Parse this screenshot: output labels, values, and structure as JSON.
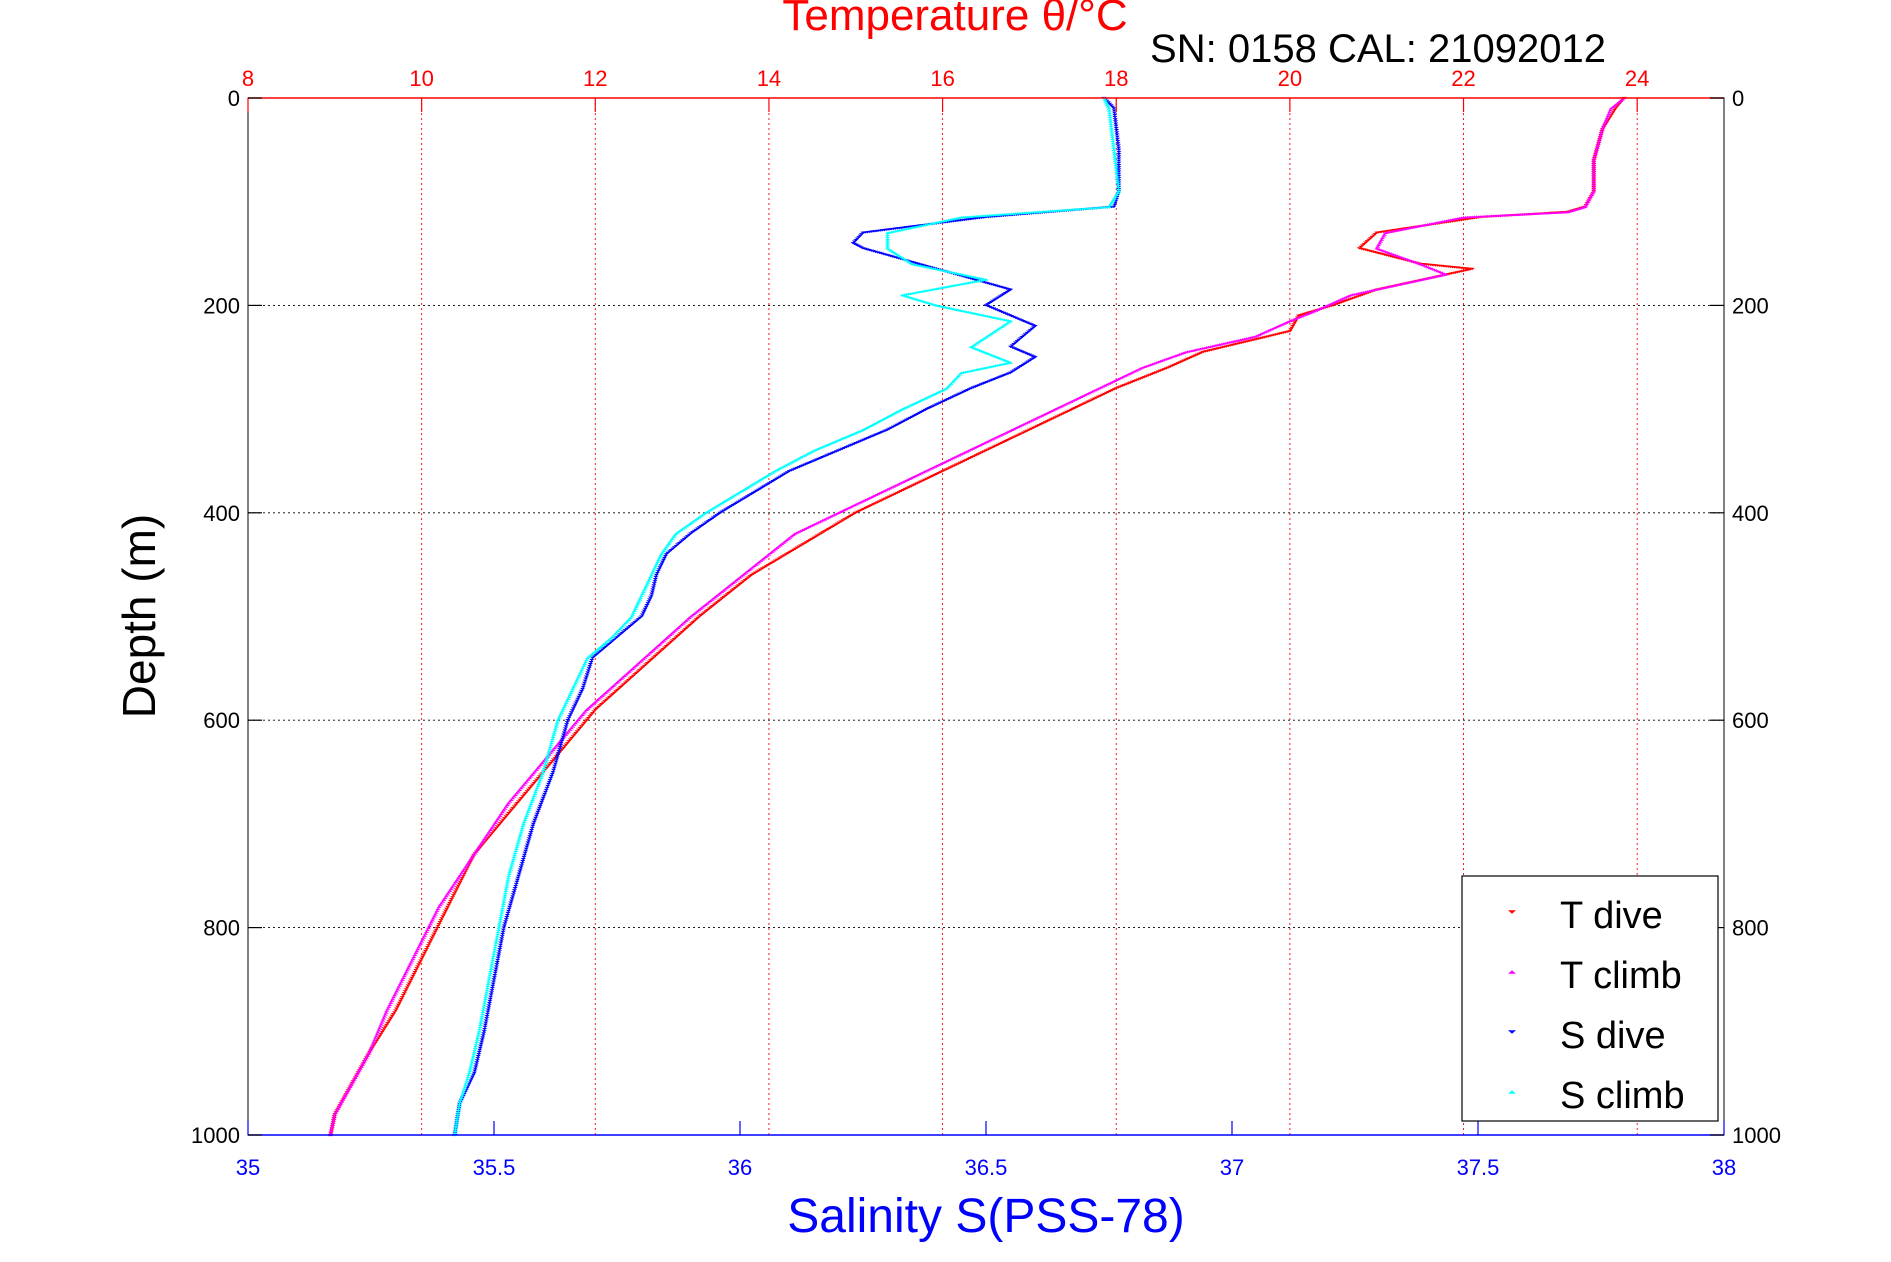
{
  "chart_data": {
    "type": "scatter",
    "title": "Temperature θ/°C",
    "subtitle": "SN: 0158  CAL: 21092012",
    "xlabel": "Salinity S(PSS-78)",
    "ylabel": "Depth (m)",
    "x_bottom": {
      "label": "Salinity S(PSS-78)",
      "range": [
        35,
        38
      ],
      "ticks": [
        35,
        35.5,
        36,
        36.5,
        37,
        37.5,
        38
      ],
      "tick_labels": [
        "35",
        "35.5",
        "36",
        "36.5",
        "37",
        "37.5",
        "38"
      ],
      "color": "#0000ff"
    },
    "x_top": {
      "label": "Temperature θ/°C",
      "range": [
        8,
        25
      ],
      "ticks": [
        8,
        10,
        12,
        14,
        16,
        18,
        20,
        22,
        24
      ],
      "tick_labels": [
        "8",
        "10",
        "12",
        "14",
        "16",
        "18",
        "20",
        "22",
        "24"
      ],
      "color": "#ff0000"
    },
    "y": {
      "label": "Depth (m)",
      "range": [
        0,
        1000
      ],
      "inverted": true,
      "ticks": [
        0,
        200,
        400,
        600,
        800,
        1000
      ],
      "tick_labels": [
        "0",
        "200",
        "400",
        "600",
        "800",
        "1000"
      ]
    },
    "grid": true,
    "legend_position": "bottom-right",
    "series": [
      {
        "name": "T dive",
        "axis": "temperature",
        "color": "#ff0000",
        "marker": "triangle-down",
        "x": [
          23.85,
          23.75,
          23.6,
          23.5,
          23.5,
          23.4,
          23.2,
          22.2,
          21.0,
          20.8,
          21.5,
          22.1,
          21.0,
          20.5,
          20.1,
          20.0,
          19.0,
          18.6,
          18.0,
          17.5,
          17.0,
          16.5,
          16.0,
          15.5,
          15.0,
          14.6,
          14.2,
          13.8,
          13.5,
          13.2,
          12.8,
          12.4,
          12.0,
          11.6,
          11.1,
          10.6,
          10.3,
          10.0,
          9.7,
          9.4,
          9.2,
          9.0,
          8.95
        ],
        "y": [
          0,
          10,
          30,
          60,
          90,
          105,
          110,
          115,
          130,
          145,
          160,
          165,
          185,
          200,
          210,
          225,
          245,
          260,
          280,
          300,
          320,
          340,
          360,
          380,
          400,
          420,
          440,
          460,
          480,
          500,
          530,
          560,
          590,
          630,
          680,
          730,
          780,
          830,
          880,
          920,
          950,
          980,
          1000
        ]
      },
      {
        "name": "T climb",
        "axis": "temperature",
        "color": "#ff00ff",
        "marker": "triangle-up",
        "x": [
          23.85,
          23.7,
          23.6,
          23.5,
          23.5,
          23.4,
          23.2,
          22.0,
          21.1,
          21.0,
          21.5,
          21.8,
          20.7,
          20.3,
          20.0,
          19.6,
          18.8,
          18.3,
          17.8,
          17.3,
          16.8,
          16.3,
          15.8,
          15.3,
          14.8,
          14.3,
          14.0,
          13.7,
          13.4,
          13.1,
          12.7,
          12.3,
          11.9,
          11.5,
          11.0,
          10.6,
          10.2,
          9.9,
          9.6,
          9.4,
          9.2,
          9.0,
          8.95
        ],
        "y": [
          0,
          10,
          30,
          60,
          90,
          105,
          110,
          115,
          130,
          145,
          160,
          170,
          190,
          205,
          215,
          230,
          245,
          260,
          280,
          300,
          320,
          340,
          360,
          380,
          400,
          420,
          440,
          460,
          480,
          500,
          530,
          560,
          590,
          630,
          680,
          730,
          780,
          830,
          880,
          920,
          950,
          980,
          1000
        ]
      },
      {
        "name": "S dive",
        "axis": "salinity",
        "color": "#0000ff",
        "marker": "triangle-down",
        "x": [
          36.74,
          36.76,
          36.77,
          36.77,
          36.76,
          36.5,
          36.25,
          36.23,
          36.25,
          36.4,
          36.55,
          36.5,
          36.6,
          36.55,
          36.6,
          36.55,
          36.47,
          36.38,
          36.3,
          36.2,
          36.1,
          36.03,
          35.96,
          35.9,
          35.85,
          35.83,
          35.82,
          35.8,
          35.75,
          35.7,
          35.68,
          35.65,
          35.62,
          35.58,
          35.55,
          35.52,
          35.5,
          35.48,
          35.46,
          35.43,
          35.42
        ],
        "y": [
          0,
          10,
          50,
          90,
          105,
          115,
          130,
          140,
          145,
          165,
          185,
          200,
          220,
          240,
          250,
          265,
          280,
          300,
          320,
          340,
          360,
          380,
          400,
          420,
          440,
          460,
          480,
          500,
          520,
          540,
          570,
          600,
          650,
          700,
          750,
          800,
          850,
          900,
          940,
          970,
          1000
        ]
      },
      {
        "name": "S climb",
        "axis": "salinity",
        "color": "#00ffff",
        "marker": "triangle-up",
        "x": [
          36.74,
          36.75,
          36.76,
          36.77,
          36.75,
          36.45,
          36.3,
          36.3,
          36.35,
          36.5,
          36.33,
          36.4,
          36.55,
          36.47,
          36.55,
          36.45,
          36.42,
          36.33,
          36.25,
          36.15,
          36.07,
          36.0,
          35.93,
          35.87,
          35.84,
          35.82,
          35.8,
          35.78,
          35.74,
          35.69,
          35.66,
          35.63,
          35.6,
          35.56,
          35.53,
          35.51,
          35.49,
          35.47,
          35.45,
          35.43,
          35.42
        ],
        "y": [
          0,
          10,
          50,
          90,
          105,
          115,
          130,
          145,
          160,
          175,
          190,
          200,
          215,
          240,
          255,
          265,
          280,
          300,
          320,
          340,
          360,
          380,
          400,
          420,
          440,
          460,
          480,
          500,
          520,
          540,
          570,
          600,
          650,
          700,
          750,
          800,
          850,
          900,
          940,
          970,
          1000
        ]
      }
    ]
  }
}
